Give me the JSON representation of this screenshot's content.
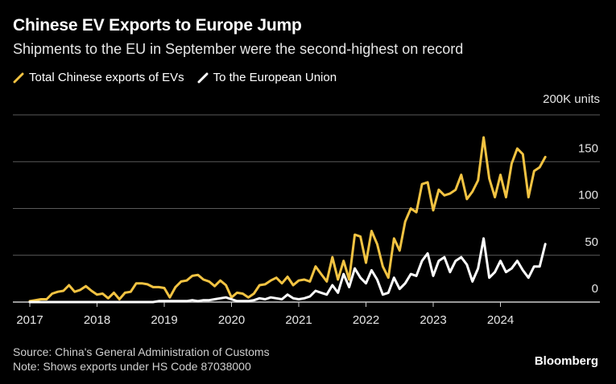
{
  "header": {
    "title": "Chinese EV Exports to Europe Jump",
    "subtitle": "Shipments to the EU in September were the second-highest on record"
  },
  "footer": {
    "source": "Source: China's General Administration of Customs",
    "note": "Note: Shows exports under HS Code 87038000",
    "brand": "Bloomberg"
  },
  "colors": {
    "background": "#000000",
    "series_total": "#f2c342",
    "series_eu": "#ffffff",
    "grid": "#5a5a5a",
    "axis": "#cccccc"
  },
  "chart_data": {
    "type": "line",
    "title": "Chinese EV Exports to Europe Jump",
    "subtitle": "Shipments to the EU in September were the second-highest on record",
    "unit_label": "200K units",
    "ylim": [
      0,
      200
    ],
    "y_ticks": [
      0,
      50,
      100,
      150
    ],
    "y_tick_labels": [
      "0",
      "50",
      "100",
      "150"
    ],
    "x_range": [
      2017.0,
      2024.75
    ],
    "x_ticks": [
      2017,
      2018,
      2019,
      2020,
      2021,
      2022,
      2023,
      2024
    ],
    "x_tick_labels": [
      "2017",
      "2018",
      "2019",
      "2020",
      "2021",
      "2022",
      "2023",
      "2024"
    ],
    "grid": true,
    "legend_position": "top-left",
    "series": [
      {
        "name": "Total Chinese exports of EVs",
        "x": [
          2017.0,
          2017.083,
          2017.167,
          2017.25,
          2017.333,
          2017.417,
          2017.5,
          2017.583,
          2017.667,
          2017.75,
          2017.833,
          2017.917,
          2018.0,
          2018.083,
          2018.167,
          2018.25,
          2018.333,
          2018.417,
          2018.5,
          2018.583,
          2018.667,
          2018.75,
          2018.833,
          2018.917,
          2019.0,
          2019.083,
          2019.167,
          2019.25,
          2019.333,
          2019.417,
          2019.5,
          2019.583,
          2019.667,
          2019.75,
          2019.833,
          2019.917,
          2020.0,
          2020.083,
          2020.167,
          2020.25,
          2020.333,
          2020.417,
          2020.5,
          2020.583,
          2020.667,
          2020.75,
          2020.833,
          2020.917,
          2021.0,
          2021.083,
          2021.167,
          2021.25,
          2021.333,
          2021.417,
          2021.5,
          2021.583,
          2021.667,
          2021.75,
          2021.833,
          2021.917,
          2022.0,
          2022.083,
          2022.167,
          2022.25,
          2022.333,
          2022.417,
          2022.5,
          2022.583,
          2022.667,
          2022.75,
          2022.833,
          2022.917,
          2023.0,
          2023.083,
          2023.167,
          2023.25,
          2023.333,
          2023.417,
          2023.5,
          2023.583,
          2023.667,
          2023.75,
          2023.833,
          2023.917,
          2024.0,
          2024.083,
          2024.167,
          2024.25,
          2024.333,
          2024.417,
          2024.5,
          2024.583,
          2024.667
        ],
        "values": [
          1,
          2,
          3,
          3,
          9,
          11,
          12,
          18,
          11,
          13,
          17,
          12,
          8,
          9,
          4,
          10,
          3,
          10,
          11,
          20,
          20,
          19,
          16,
          16,
          15,
          5,
          16,
          22,
          23,
          28,
          29,
          24,
          22,
          17,
          23,
          18,
          5,
          10,
          9,
          5,
          9,
          18,
          19,
          23,
          26,
          20,
          27,
          18,
          23,
          24,
          22,
          38,
          30,
          22,
          48,
          24,
          44,
          24,
          72,
          70,
          42,
          76,
          62,
          38,
          26,
          68,
          55,
          86,
          100,
          96,
          126,
          128,
          98,
          120,
          114,
          116,
          120,
          136,
          110,
          118,
          130,
          176,
          132,
          112,
          136,
          112,
          148,
          164,
          158,
          112,
          140,
          144,
          155
        ]
      },
      {
        "name": "To the European Union",
        "x": [
          2017.0,
          2017.083,
          2017.167,
          2017.25,
          2017.333,
          2017.417,
          2017.5,
          2017.583,
          2017.667,
          2017.75,
          2017.833,
          2017.917,
          2018.0,
          2018.083,
          2018.167,
          2018.25,
          2018.333,
          2018.417,
          2018.5,
          2018.583,
          2018.667,
          2018.75,
          2018.833,
          2018.917,
          2019.0,
          2019.083,
          2019.167,
          2019.25,
          2019.333,
          2019.417,
          2019.5,
          2019.583,
          2019.667,
          2019.75,
          2019.833,
          2019.917,
          2020.0,
          2020.083,
          2020.167,
          2020.25,
          2020.333,
          2020.417,
          2020.5,
          2020.583,
          2020.667,
          2020.75,
          2020.833,
          2020.917,
          2021.0,
          2021.083,
          2021.167,
          2021.25,
          2021.333,
          2021.417,
          2021.5,
          2021.583,
          2021.667,
          2021.75,
          2021.833,
          2021.917,
          2022.0,
          2022.083,
          2022.167,
          2022.25,
          2022.333,
          2022.417,
          2022.5,
          2022.583,
          2022.667,
          2022.75,
          2022.833,
          2022.917,
          2023.0,
          2023.083,
          2023.167,
          2023.25,
          2023.333,
          2023.417,
          2023.5,
          2023.583,
          2023.667,
          2023.75,
          2023.833,
          2023.917,
          2024.0,
          2024.083,
          2024.167,
          2024.25,
          2024.333,
          2024.417,
          2024.5,
          2024.583,
          2024.667
        ],
        "values": [
          0,
          0,
          0,
          0,
          0,
          0,
          0,
          0,
          0,
          0,
          0,
          0,
          0,
          0,
          0,
          0,
          0,
          0,
          0,
          0,
          0,
          0,
          0,
          1,
          1,
          1,
          1,
          1,
          1,
          2,
          1,
          2,
          2,
          3,
          4,
          5,
          3,
          1,
          1,
          1,
          2,
          4,
          3,
          5,
          4,
          3,
          8,
          4,
          3,
          4,
          6,
          12,
          10,
          8,
          18,
          10,
          30,
          16,
          36,
          26,
          20,
          34,
          24,
          8,
          10,
          26,
          14,
          20,
          30,
          28,
          44,
          52,
          28,
          44,
          48,
          32,
          44,
          48,
          40,
          22,
          36,
          68,
          26,
          32,
          44,
          32,
          36,
          44,
          34,
          26,
          38,
          38,
          62
        ]
      }
    ]
  }
}
